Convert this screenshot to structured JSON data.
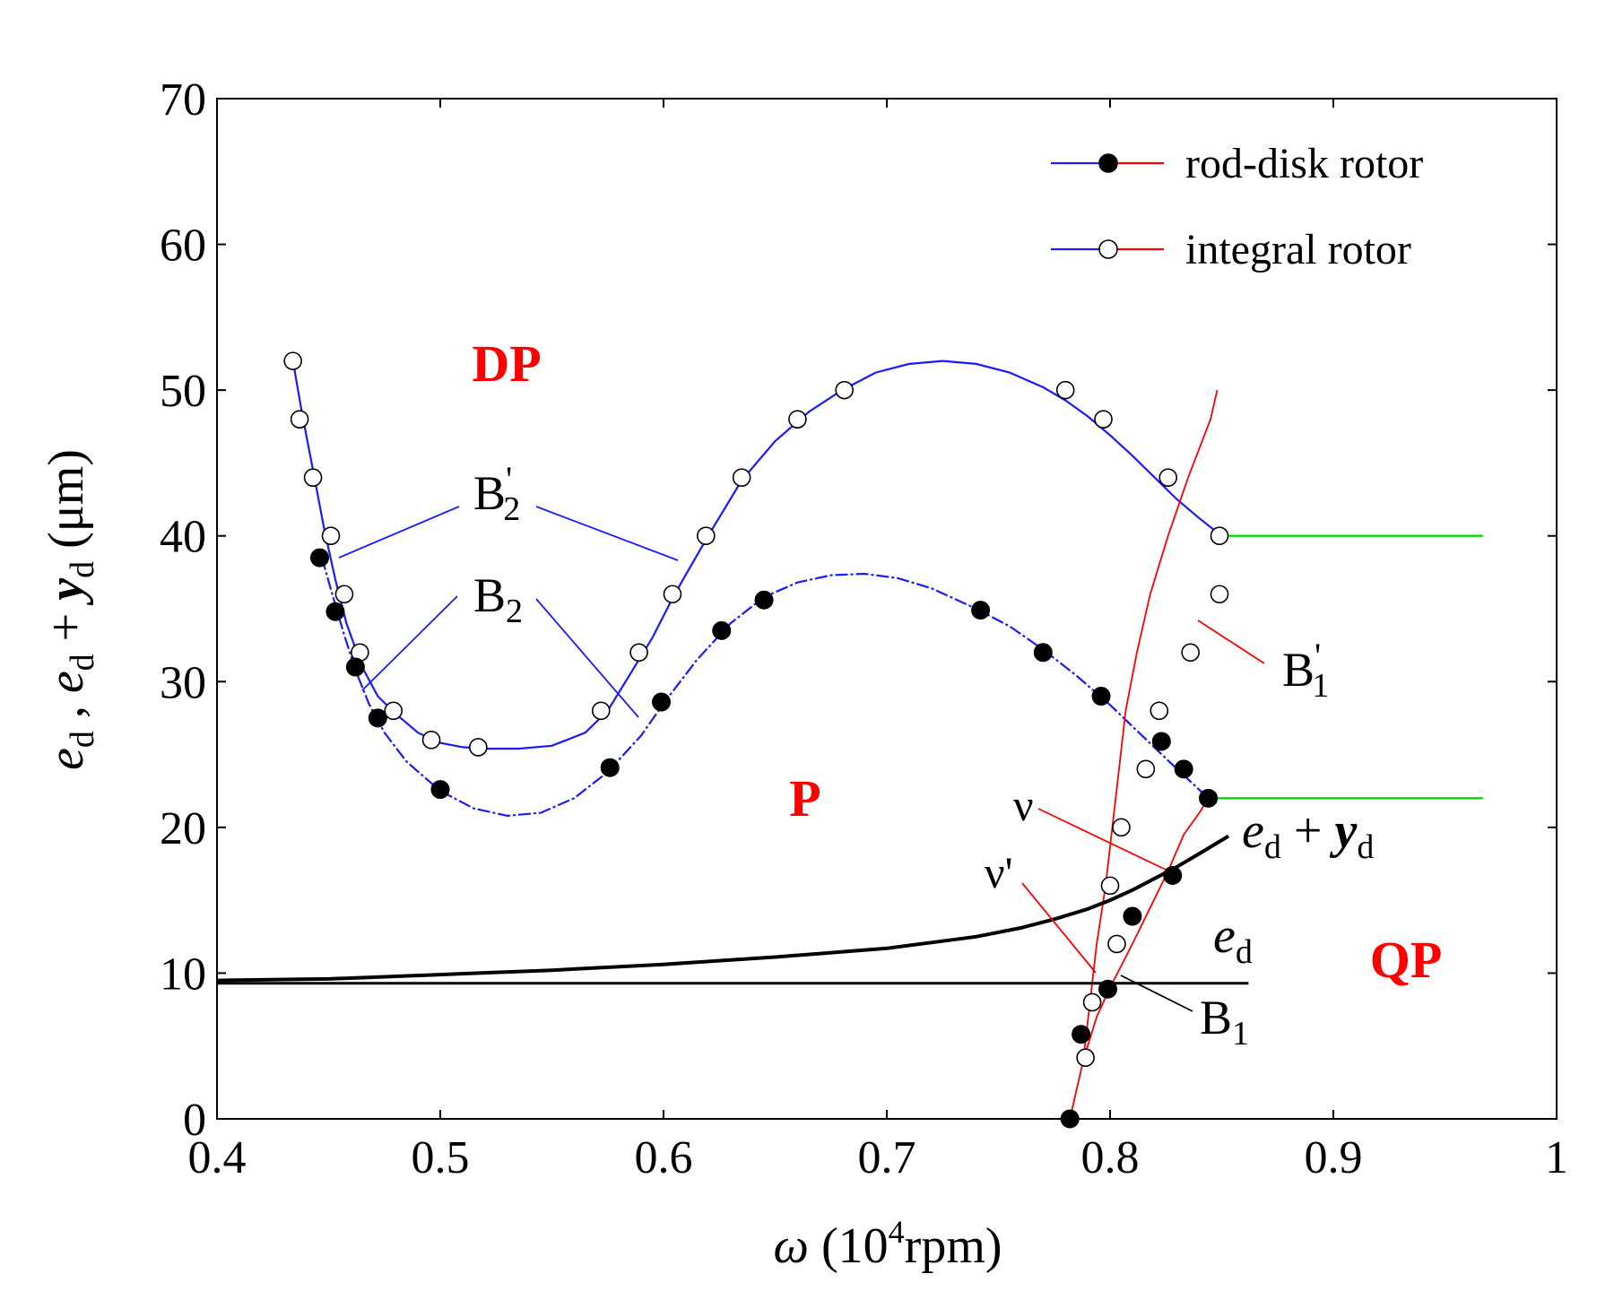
{
  "chart_data": {
    "type": "line",
    "xlim": [
      0.4,
      1.0
    ],
    "ylim": [
      0,
      70
    ],
    "x_ticks": [
      0.4,
      0.5,
      0.6,
      0.7,
      0.8,
      0.9,
      1.0
    ],
    "x_tick_labels": [
      "0.4",
      "0.5",
      "0.6",
      "0.7",
      "0.8",
      "0.9",
      "1"
    ],
    "y_ticks": [
      0,
      10,
      20,
      30,
      40,
      50,
      60,
      70
    ],
    "y_tick_labels": [
      "0",
      "10",
      "20",
      "30",
      "40",
      "50",
      "60",
      "70"
    ],
    "xlabel": {
      "symbol": "ω",
      "open": " (10",
      "sup": "4",
      "rest": "rpm)"
    },
    "ylabel": {
      "e": "e",
      "d": "d",
      "comma": " , ",
      "plus": " + ",
      "y": "y",
      "unit": " (μm)"
    },
    "legend": {
      "placement": "top-right",
      "entries": [
        {
          "label": "rod-disk rotor",
          "marker": "filled-circle"
        },
        {
          "label": "integral rotor",
          "marker": "open-circle"
        }
      ]
    },
    "region_labels": [
      "DP",
      "P",
      "QP"
    ],
    "annotations": {
      "B2p": {
        "base": "B",
        "sub": "2",
        "prime": "'"
      },
      "B2": {
        "base": "B",
        "sub": "2"
      },
      "B1p": {
        "base": "B",
        "sub": "1",
        "prime": "'"
      },
      "B1": {
        "base": "B",
        "sub": "1"
      },
      "v": "ν",
      "vp": "ν'",
      "ed_plus_yd": {
        "e": "e",
        "d": "d",
        "plus": " + ",
        "y": "y"
      },
      "ed": {
        "e": "e",
        "d": "d"
      }
    },
    "colors": {
      "upper_branch": "#1a1aff",
      "lower_branch": "#ff0000",
      "boundary": "#00dd00",
      "curve": "#000000",
      "region": "#ff0000"
    },
    "series": [
      {
        "name": "integral rotor B2' (upper)",
        "marker": "open",
        "curve_x": [
          0.434,
          0.438,
          0.443,
          0.448,
          0.453,
          0.458,
          0.465,
          0.472,
          0.48,
          0.49,
          0.5,
          0.51,
          0.52,
          0.535,
          0.55,
          0.565,
          0.575,
          0.585,
          0.595,
          0.605,
          0.62,
          0.635,
          0.65,
          0.665,
          0.68,
          0.695,
          0.71,
          0.725,
          0.74,
          0.755,
          0.77,
          0.78,
          0.79,
          0.8,
          0.81,
          0.82,
          0.83,
          0.84,
          0.85
        ],
        "curve_y": [
          52,
          48.5,
          44.5,
          40.5,
          37,
          34,
          31,
          29,
          27.8,
          26.5,
          25.8,
          25.5,
          25.4,
          25.4,
          25.6,
          26.5,
          28,
          30.5,
          33,
          36,
          40,
          43.8,
          46.5,
          48.5,
          50,
          51.2,
          51.8,
          52,
          51.8,
          51.2,
          50.2,
          49.3,
          48.2,
          46.9,
          45.5,
          44,
          42.5,
          41.2,
          40
        ],
        "points_x": [
          0.434,
          0.437,
          0.443,
          0.451,
          0.457,
          0.464,
          0.479,
          0.496,
          0.517,
          0.572,
          0.589,
          0.604,
          0.619,
          0.635,
          0.66,
          0.681,
          0.78,
          0.797,
          0.826,
          0.849
        ],
        "points_y": [
          52,
          48,
          44,
          40,
          36,
          32,
          28,
          26,
          25.5,
          28,
          32,
          36,
          40,
          44,
          48,
          50,
          50,
          48,
          44,
          40
        ]
      },
      {
        "name": "rod-disk rotor B2 (upper)",
        "marker": "filled",
        "curve_x": [
          0.447,
          0.452,
          0.457,
          0.462,
          0.468,
          0.475,
          0.485,
          0.5,
          0.515,
          0.53,
          0.545,
          0.56,
          0.575,
          0.59,
          0.6,
          0.615,
          0.63,
          0.645,
          0.66,
          0.675,
          0.69,
          0.705,
          0.72,
          0.74,
          0.755,
          0.77,
          0.785,
          0.8,
          0.815,
          0.83,
          0.844
        ],
        "curve_y": [
          38.5,
          35.8,
          33.2,
          30.8,
          28.5,
          26.5,
          24.5,
          22.5,
          21.3,
          20.8,
          21,
          22,
          23.8,
          26.3,
          28.5,
          31.5,
          34,
          35.8,
          36.8,
          37.3,
          37.4,
          37.1,
          36.4,
          35,
          33.8,
          32.2,
          30.4,
          28.4,
          26.2,
          24,
          22
        ],
        "points_x": [
          0.446,
          0.453,
          0.462,
          0.472,
          0.5,
          0.576,
          0.599,
          0.626,
          0.645,
          0.742,
          0.77,
          0.796,
          0.823,
          0.833,
          0.844
        ],
        "points_y": [
          38.5,
          34.8,
          31,
          27.5,
          22.6,
          24.1,
          28.6,
          33.5,
          35.6,
          34.9,
          32,
          29,
          25.9,
          24,
          22
        ]
      },
      {
        "name": "integral rotor B1' (lower)",
        "marker": "open",
        "curve_x": [
          0.788,
          0.791,
          0.794,
          0.798,
          0.801,
          0.804,
          0.807,
          0.812,
          0.818,
          0.826,
          0.835,
          0.845,
          0.848
        ],
        "curve_y": [
          4,
          8,
          12,
          16,
          20,
          24,
          28,
          32,
          36,
          40,
          44,
          48,
          50
        ],
        "points_x": [
          0.789,
          0.792,
          0.803,
          0.8,
          0.805,
          0.816,
          0.822,
          0.836,
          0.849
        ],
        "points_y": [
          4.2,
          8,
          12,
          16,
          20,
          24,
          28,
          32,
          36
        ]
      },
      {
        "name": "rod-disk rotor B1 (lower)",
        "marker": "filled",
        "curve_x": [
          0.782,
          0.788,
          0.794,
          0.8,
          0.81,
          0.818,
          0.826,
          0.833,
          0.84,
          0.844
        ],
        "curve_y": [
          0,
          4,
          7,
          9,
          12,
          14.5,
          17,
          19.5,
          21,
          22
        ],
        "points_x": [
          0.782,
          0.787,
          0.799,
          0.81,
          0.828
        ],
        "points_y": [
          0,
          5.8,
          8.9,
          13.9,
          16.7
        ]
      },
      {
        "name": "QP boundary (green)",
        "marker": "none",
        "segments": [
          {
            "x": [
              0.849,
              0.967
            ],
            "y": [
              40,
              40
            ]
          },
          {
            "x": [
              0.844,
              0.967
            ],
            "y": [
              22,
              22
            ]
          }
        ]
      },
      {
        "name": "e_d + y_d",
        "marker": "none",
        "x": [
          0.4,
          0.45,
          0.5,
          0.55,
          0.6,
          0.65,
          0.7,
          0.72,
          0.74,
          0.76,
          0.775,
          0.79,
          0.8,
          0.81,
          0.82,
          0.83,
          0.84,
          0.853
        ],
        "y": [
          9.5,
          9.6,
          9.9,
          10.2,
          10.6,
          11.1,
          11.7,
          12.1,
          12.5,
          13.1,
          13.7,
          14.4,
          15,
          15.7,
          16.5,
          17.3,
          18.2,
          19.4
        ]
      },
      {
        "name": "e_d",
        "marker": "none",
        "x": [
          0.4,
          0.862
        ],
        "y": [
          9.3,
          9.3
        ]
      }
    ]
  }
}
